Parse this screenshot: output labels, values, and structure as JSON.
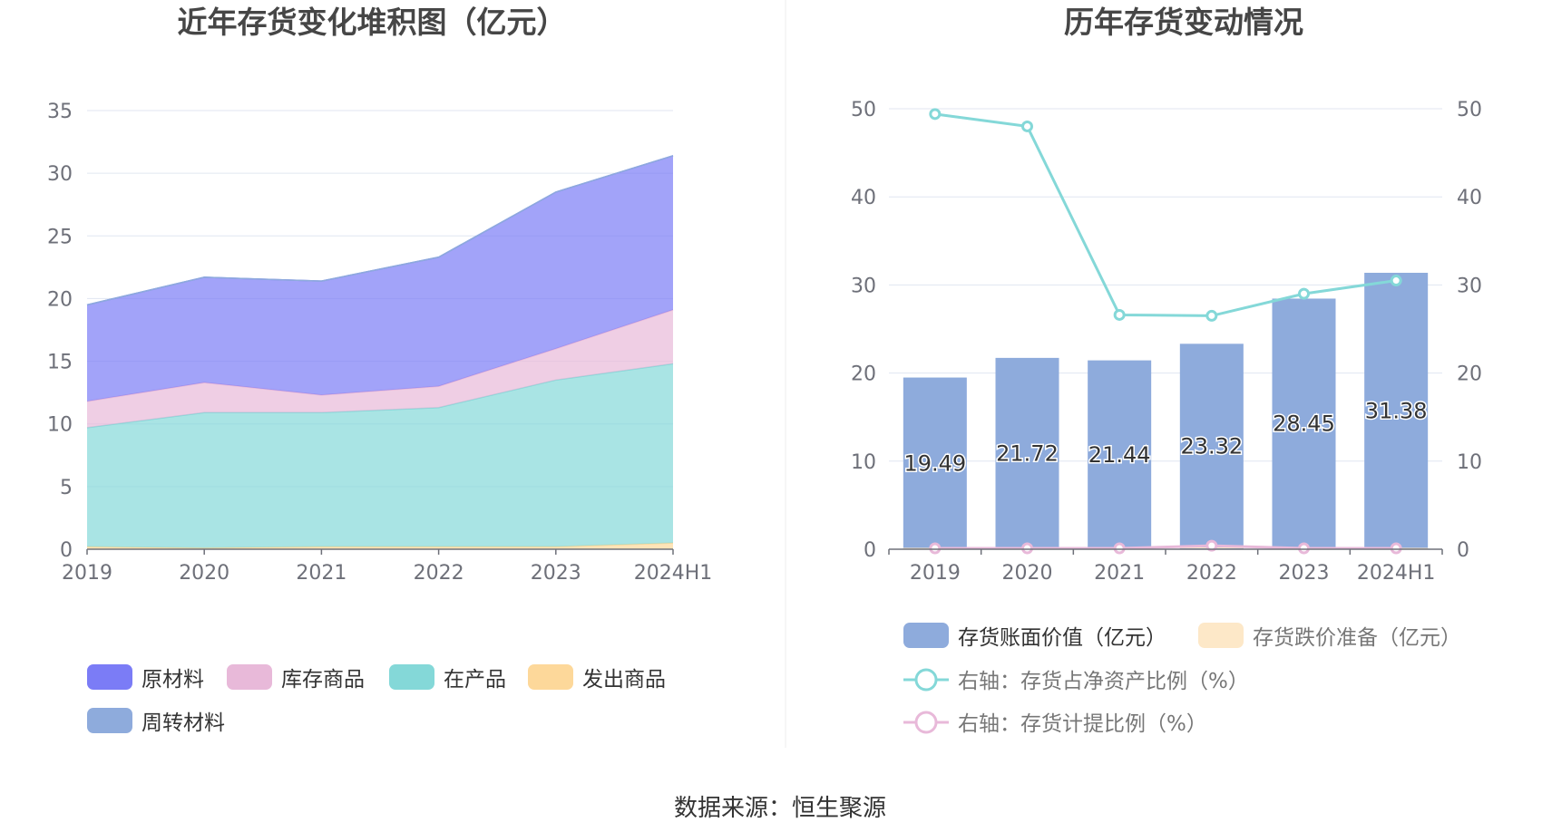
{
  "source_text": "数据来源：恒生聚源",
  "chart_data": [
    {
      "type": "area",
      "stacked": true,
      "title": "近年存货变化堆积图（亿元）",
      "categories": [
        "2019",
        "2020",
        "2021",
        "2022",
        "2023",
        "2024H1"
      ],
      "ylim": [
        0,
        35
      ],
      "yticks": [
        0,
        5,
        10,
        15,
        20,
        25,
        30,
        35
      ],
      "grid": true,
      "legend_position": "bottom",
      "series": [
        {
          "name": "发出商品",
          "color": "#fdd89a",
          "values": [
            0.2,
            0.1,
            0.2,
            0.2,
            0.2,
            0.5
          ]
        },
        {
          "name": "在产品",
          "color": "#84d8d8",
          "values": [
            9.5,
            10.8,
            10.7,
            11.1,
            13.3,
            14.3
          ]
        },
        {
          "name": "库存商品",
          "color": "#e8b9d9",
          "values": [
            2.1,
            2.4,
            1.4,
            1.7,
            2.5,
            4.3
          ]
        },
        {
          "name": "原材料",
          "color": "#7b7cf6",
          "values": [
            7.7,
            8.4,
            9.1,
            10.3,
            12.5,
            12.3
          ]
        },
        {
          "name": "周转材料",
          "color": "#8eabdc",
          "values": [
            0.0,
            0.0,
            0.0,
            0.0,
            0.0,
            0.0
          ]
        }
      ],
      "legend_order": [
        "原材料",
        "库存商品",
        "在产品",
        "发出商品",
        "周转材料"
      ]
    },
    {
      "type": "bar+line",
      "title": "历年存货变动情况",
      "categories": [
        "2019",
        "2020",
        "2021",
        "2022",
        "2023",
        "2024H1"
      ],
      "ylim": [
        0,
        50
      ],
      "y2lim": [
        0,
        50
      ],
      "yticks": [
        0,
        10,
        20,
        30,
        40,
        50
      ],
      "grid": true,
      "legend_position": "bottom",
      "bars": [
        {
          "name": "存货账面价值（亿元）",
          "color": "#8eabdc",
          "values": [
            19.49,
            21.72,
            21.44,
            23.32,
            28.45,
            31.38
          ],
          "labels": [
            "19.49",
            "21.72",
            "21.44",
            "23.32",
            "28.45",
            "31.38"
          ]
        },
        {
          "name": "存货跌价准备（亿元）",
          "color": "#fde8c8",
          "values": [
            0.05,
            0.05,
            0.05,
            0.1,
            0.05,
            0.05
          ]
        }
      ],
      "lines": [
        {
          "name": "右轴：存货占净资产比例（%）",
          "color": "#84d8d8",
          "axis": "right",
          "values": [
            49.4,
            48.0,
            26.6,
            26.5,
            29.0,
            30.5
          ]
        },
        {
          "name": "右轴：存货计提比例（%）",
          "color": "#e8b9d9",
          "axis": "right",
          "values": [
            0.1,
            0.1,
            0.1,
            0.4,
            0.1,
            0.1
          ]
        }
      ]
    }
  ]
}
